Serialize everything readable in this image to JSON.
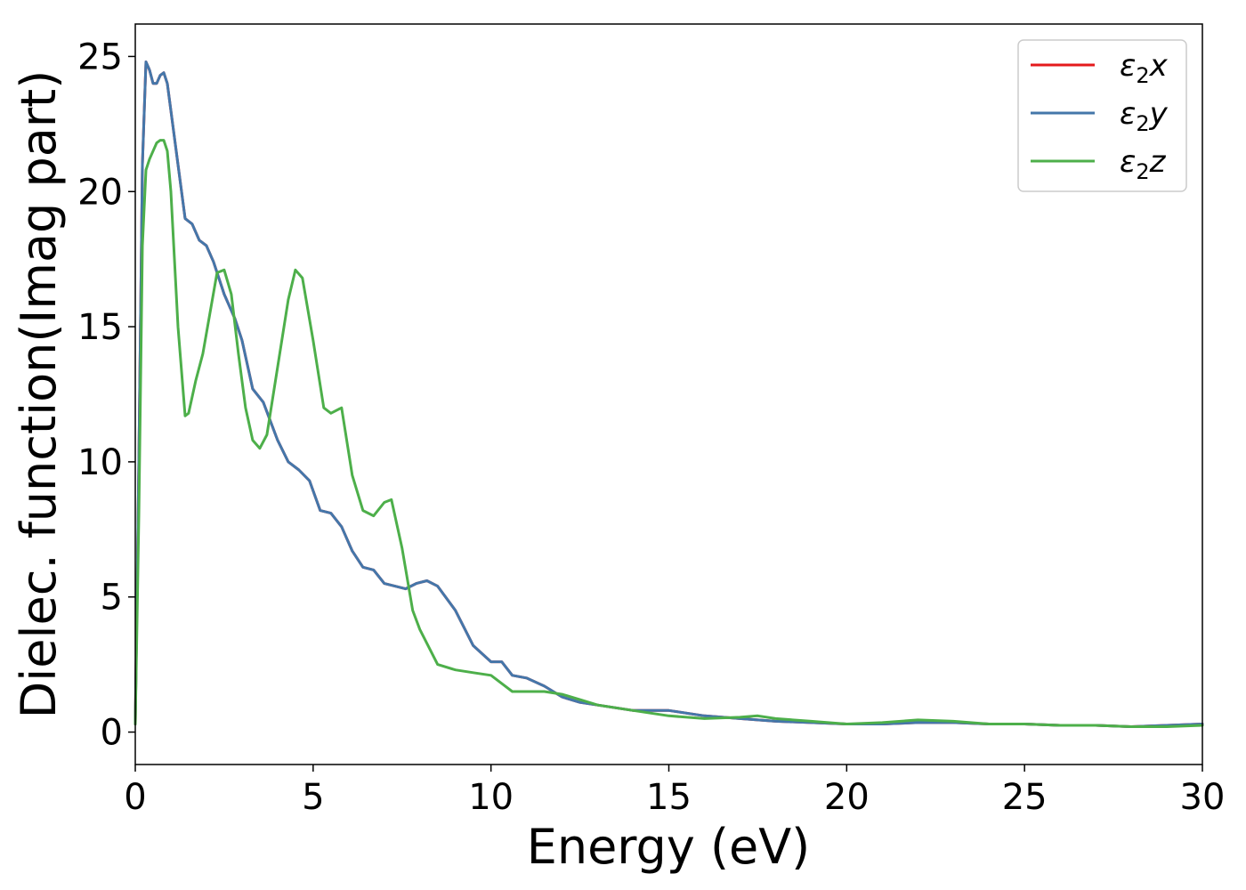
{
  "chart_data": {
    "type": "line",
    "title": "",
    "xlabel": "Energy (eV)",
    "ylabel": "Dielec. function(Imag part)",
    "xlim": [
      0,
      30
    ],
    "ylim": [
      -1.2,
      26.2
    ],
    "xticks": [
      0,
      5,
      10,
      15,
      20,
      25,
      30
    ],
    "yticks": [
      0,
      5,
      10,
      15,
      20,
      25
    ],
    "grid": false,
    "legend": "top-right",
    "series": [
      {
        "name": "ε₂x",
        "label_base": "ε",
        "label_sub": "2",
        "label_tail": "x",
        "color": "#e41a1c",
        "x": [
          0,
          0.1,
          0.2,
          0.3,
          0.4,
          0.5,
          0.6,
          0.7,
          0.8,
          0.9,
          1.0,
          1.2,
          1.4,
          1.6,
          1.8,
          2.0,
          2.2,
          2.5,
          2.8,
          3.0,
          3.3,
          3.6,
          4.0,
          4.3,
          4.6,
          4.9,
          5.2,
          5.5,
          5.8,
          6.1,
          6.4,
          6.7,
          7.0,
          7.3,
          7.6,
          7.9,
          8.2,
          8.5,
          9.0,
          9.5,
          10.0,
          10.3,
          10.6,
          11.0,
          11.5,
          12.0,
          12.5,
          13.0,
          14.0,
          15.0,
          16.0,
          17.0,
          18.0,
          19.0,
          20.0,
          21.0,
          22.0,
          23.0,
          24.0,
          25.0,
          26.0,
          27.0,
          28.0,
          29.0,
          30.0
        ],
        "values": [
          0.3,
          10.0,
          21.0,
          24.8,
          24.5,
          24.0,
          24.0,
          24.3,
          24.4,
          24.0,
          23.0,
          21.0,
          19.0,
          18.8,
          18.2,
          18.0,
          17.4,
          16.2,
          15.3,
          14.5,
          12.7,
          12.2,
          10.8,
          10.0,
          9.7,
          9.3,
          8.2,
          8.1,
          7.6,
          6.7,
          6.1,
          6.0,
          5.5,
          5.4,
          5.3,
          5.5,
          5.6,
          5.4,
          4.5,
          3.2,
          2.6,
          2.6,
          2.1,
          2.0,
          1.7,
          1.3,
          1.1,
          1.0,
          0.8,
          0.8,
          0.6,
          0.5,
          0.4,
          0.35,
          0.3,
          0.3,
          0.35,
          0.35,
          0.3,
          0.3,
          0.25,
          0.25,
          0.2,
          0.25,
          0.3
        ]
      },
      {
        "name": "ε₂y",
        "label_base": "ε",
        "label_sub": "2",
        "label_tail": "y",
        "color": "#4477aa",
        "x": [
          0,
          0.1,
          0.2,
          0.3,
          0.4,
          0.5,
          0.6,
          0.7,
          0.8,
          0.9,
          1.0,
          1.2,
          1.4,
          1.6,
          1.8,
          2.0,
          2.2,
          2.5,
          2.8,
          3.0,
          3.3,
          3.6,
          4.0,
          4.3,
          4.6,
          4.9,
          5.2,
          5.5,
          5.8,
          6.1,
          6.4,
          6.7,
          7.0,
          7.3,
          7.6,
          7.9,
          8.2,
          8.5,
          9.0,
          9.5,
          10.0,
          10.3,
          10.6,
          11.0,
          11.5,
          12.0,
          12.5,
          13.0,
          14.0,
          15.0,
          16.0,
          17.0,
          18.0,
          19.0,
          20.0,
          21.0,
          22.0,
          23.0,
          24.0,
          25.0,
          26.0,
          27.0,
          28.0,
          29.0,
          30.0
        ],
        "values": [
          0.3,
          10.0,
          21.0,
          24.8,
          24.5,
          24.0,
          24.0,
          24.3,
          24.4,
          24.0,
          23.0,
          21.0,
          19.0,
          18.8,
          18.2,
          18.0,
          17.4,
          16.2,
          15.3,
          14.5,
          12.7,
          12.2,
          10.8,
          10.0,
          9.7,
          9.3,
          8.2,
          8.1,
          7.6,
          6.7,
          6.1,
          6.0,
          5.5,
          5.4,
          5.3,
          5.5,
          5.6,
          5.4,
          4.5,
          3.2,
          2.6,
          2.6,
          2.1,
          2.0,
          1.7,
          1.3,
          1.1,
          1.0,
          0.8,
          0.8,
          0.6,
          0.5,
          0.4,
          0.35,
          0.3,
          0.3,
          0.35,
          0.35,
          0.3,
          0.3,
          0.25,
          0.25,
          0.2,
          0.25,
          0.3
        ]
      },
      {
        "name": "ε₂z",
        "label_base": "ε",
        "label_sub": "2",
        "label_tail": "z",
        "color": "#4daf4a",
        "x": [
          0,
          0.1,
          0.2,
          0.3,
          0.4,
          0.5,
          0.6,
          0.7,
          0.8,
          0.9,
          1.0,
          1.2,
          1.4,
          1.5,
          1.7,
          1.9,
          2.1,
          2.3,
          2.5,
          2.7,
          2.9,
          3.1,
          3.3,
          3.5,
          3.7,
          4.0,
          4.3,
          4.5,
          4.7,
          5.0,
          5.3,
          5.5,
          5.8,
          6.1,
          6.4,
          6.7,
          7.0,
          7.2,
          7.5,
          7.8,
          8.0,
          8.5,
          9.0,
          9.5,
          10.0,
          10.3,
          10.6,
          11.0,
          11.5,
          12.0,
          12.5,
          13.0,
          14.0,
          15.0,
          16.0,
          17.0,
          17.5,
          18.0,
          19.0,
          20.0,
          21.0,
          22.0,
          23.0,
          24.0,
          25.0,
          26.0,
          27.0,
          28.0,
          29.0,
          30.0
        ],
        "values": [
          0.3,
          8.0,
          18.0,
          20.8,
          21.2,
          21.5,
          21.8,
          21.9,
          21.9,
          21.5,
          20.0,
          15.0,
          11.7,
          11.8,
          13.0,
          14.0,
          15.5,
          17.0,
          17.1,
          16.2,
          14.0,
          12.0,
          10.8,
          10.5,
          11.0,
          13.5,
          16.0,
          17.1,
          16.8,
          14.5,
          12.0,
          11.8,
          12.0,
          9.5,
          8.2,
          8.0,
          8.5,
          8.6,
          6.8,
          4.5,
          3.8,
          2.5,
          2.3,
          2.2,
          2.1,
          1.8,
          1.5,
          1.5,
          1.5,
          1.4,
          1.2,
          1.0,
          0.8,
          0.6,
          0.5,
          0.55,
          0.6,
          0.5,
          0.4,
          0.3,
          0.35,
          0.45,
          0.4,
          0.3,
          0.3,
          0.25,
          0.25,
          0.2,
          0.2,
          0.25
        ]
      }
    ]
  }
}
